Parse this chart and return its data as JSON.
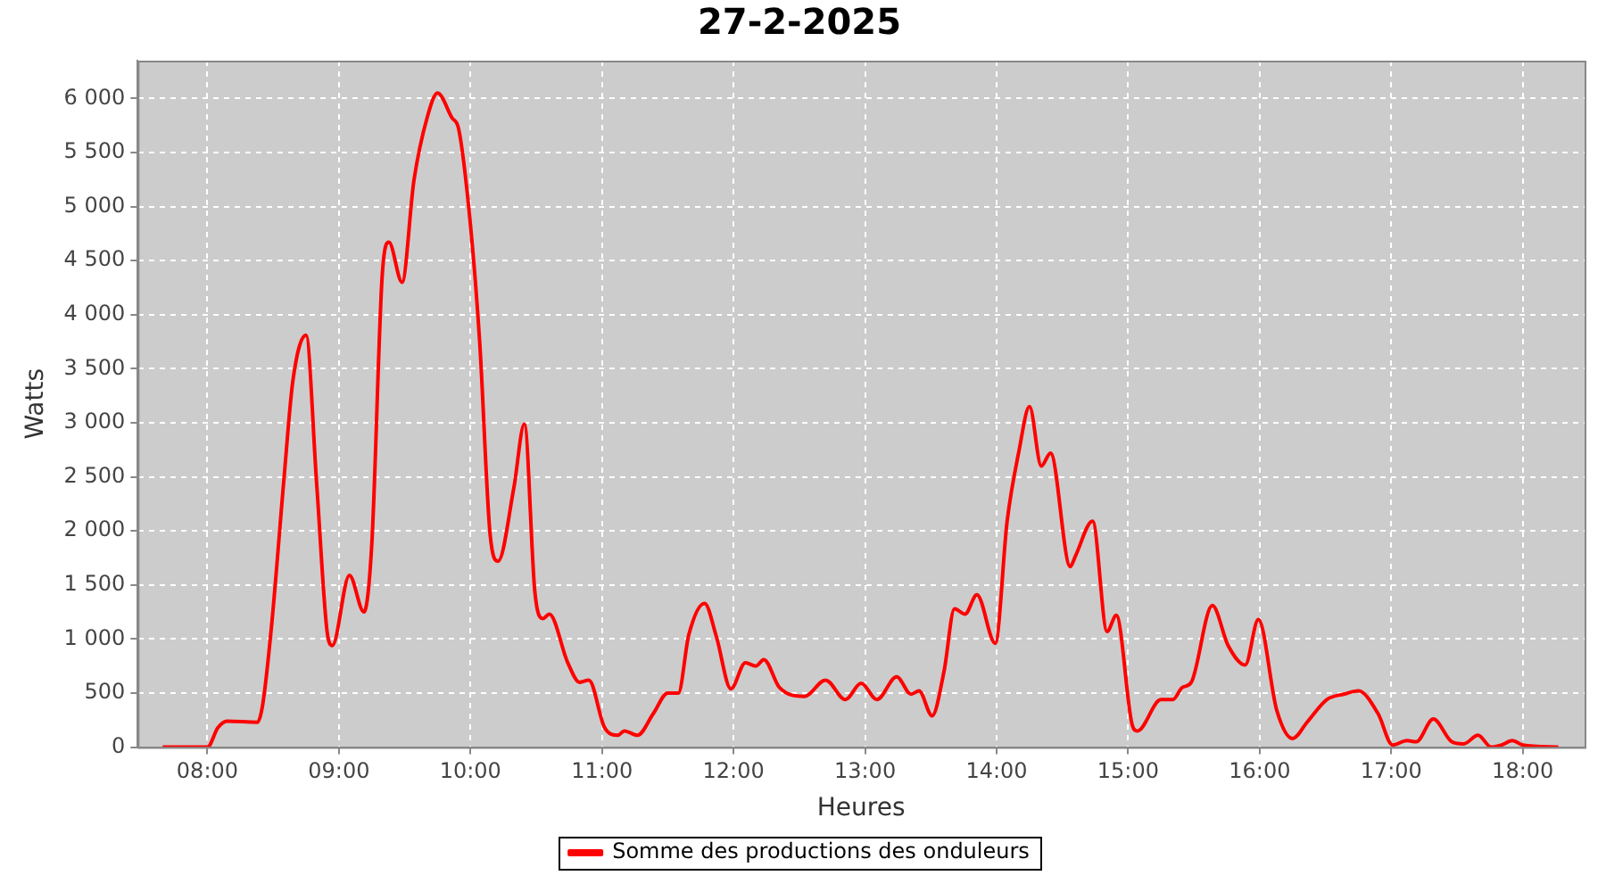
{
  "chart_data": {
    "type": "line",
    "title": "27-2-2025",
    "xlabel": "Heures",
    "ylabel": "Watts",
    "grid": true,
    "legend": "bottom",
    "marker": "none",
    "line_style": "solid",
    "xlim": [
      7.47,
      18.47
    ],
    "xticks": [
      {
        "value": 8,
        "label": "08:00"
      },
      {
        "value": 9,
        "label": "09:00"
      },
      {
        "value": 10,
        "label": "10:00"
      },
      {
        "value": 11,
        "label": "11:00"
      },
      {
        "value": 12,
        "label": "12:00"
      },
      {
        "value": 13,
        "label": "13:00"
      },
      {
        "value": 14,
        "label": "14:00"
      },
      {
        "value": 15,
        "label": "15:00"
      },
      {
        "value": 16,
        "label": "16:00"
      },
      {
        "value": 17,
        "label": "17:00"
      },
      {
        "value": 18,
        "label": "18:00"
      }
    ],
    "ylim": [
      0,
      6350
    ],
    "yticks": [
      0,
      500,
      {
        "value": 1000,
        "label": "1 000"
      },
      {
        "value": 1500,
        "label": "1 500"
      },
      {
        "value": 2000,
        "label": "2 000"
      },
      {
        "value": 2500,
        "label": "2 500"
      },
      {
        "value": 3000,
        "label": "3 000"
      },
      {
        "value": 3500,
        "label": "3 500"
      },
      {
        "value": 4000,
        "label": "4 000"
      },
      {
        "value": 4500,
        "label": "4 500"
      },
      {
        "value": 5000,
        "label": "5 000"
      },
      {
        "value": 5500,
        "label": "5 500"
      },
      {
        "value": 6000,
        "label": "6 000"
      }
    ],
    "series": [
      {
        "name": "Somme des productions des onduleurs",
        "color": "#ff0000",
        "x": [
          7.66,
          8.0,
          8.08,
          8.15,
          8.38,
          8.42,
          8.49,
          8.58,
          8.65,
          8.75,
          8.83,
          8.91,
          8.95,
          9.08,
          9.19,
          9.25,
          9.33,
          9.38,
          9.48,
          9.57,
          9.67,
          9.75,
          9.86,
          9.91,
          10.0,
          10.07,
          10.15,
          10.21,
          10.33,
          10.41,
          10.49,
          10.55,
          10.6,
          10.74,
          10.83,
          10.9,
          11.02,
          11.12,
          11.17,
          11.27,
          11.39,
          11.5,
          11.58,
          11.66,
          11.78,
          11.87,
          11.98,
          12.09,
          12.17,
          12.23,
          12.35,
          12.54,
          12.7,
          12.85,
          12.97,
          13.09,
          13.24,
          13.35,
          13.41,
          13.51,
          13.6,
          13.68,
          13.76,
          13.85,
          13.99,
          14.08,
          14.17,
          14.25,
          14.34,
          14.41,
          14.56,
          14.6,
          14.73,
          14.84,
          14.91,
          15.03,
          15.07,
          15.25,
          15.34,
          15.41,
          15.48,
          15.64,
          15.76,
          15.89,
          15.99,
          16.13,
          16.25,
          16.36,
          16.51,
          16.64,
          16.75,
          16.9,
          17.01,
          17.12,
          17.19,
          17.32,
          17.46,
          17.55,
          17.66,
          17.76,
          17.84,
          17.92,
          18.0,
          18.27
        ],
        "values": [
          0,
          0,
          180,
          240,
          230,
          390,
          1150,
          2450,
          3390,
          3810,
          2450,
          1070,
          940,
          1590,
          1250,
          1880,
          4380,
          4670,
          4300,
          5240,
          5820,
          6050,
          5820,
          5720,
          4830,
          3750,
          1960,
          1720,
          2400,
          2990,
          1430,
          1190,
          1230,
          780,
          600,
          620,
          180,
          110,
          150,
          110,
          310,
          500,
          500,
          1040,
          1330,
          1020,
          540,
          780,
          750,
          810,
          550,
          470,
          620,
          440,
          590,
          440,
          650,
          490,
          520,
          290,
          700,
          1280,
          1230,
          1410,
          960,
          2090,
          2740,
          3150,
          2600,
          2720,
          1670,
          1770,
          2090,
          1070,
          1220,
          210,
          150,
          440,
          440,
          550,
          600,
          1310,
          940,
          760,
          1180,
          340,
          80,
          230,
          440,
          490,
          520,
          310,
          20,
          60,
          50,
          260,
          50,
          30,
          110,
          0,
          20,
          60,
          20,
          0
        ]
      }
    ]
  }
}
